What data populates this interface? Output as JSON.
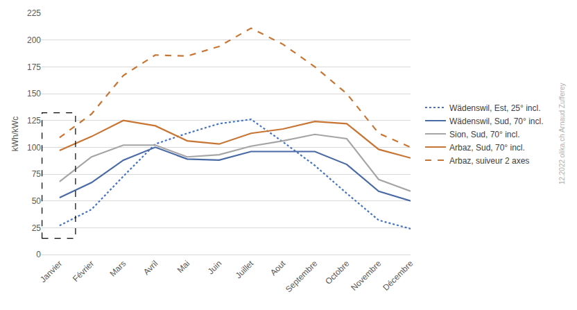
{
  "chart_data": {
    "type": "line",
    "y_label": "kWh/kWc",
    "categories": [
      "Janvier",
      "Février",
      "Mars",
      "Avril",
      "Mai",
      "Juin",
      "Juillet",
      "Aout",
      "Septembre",
      "Octobre",
      "Novembre",
      "Décembre"
    ],
    "series": [
      {
        "name": "Wädenswil, Est, 25° incl.",
        "color": "#4472c4",
        "line_style": "dot",
        "values": [
          27,
          42,
          73,
          103,
          113,
          122,
          126,
          105,
          83,
          57,
          32,
          24
        ]
      },
      {
        "name": "Wädenswil, Sud, 70° incl.",
        "color": "#4a6aa5",
        "line_style": "solid",
        "values": [
          53,
          67,
          88,
          100,
          89,
          88,
          96,
          96,
          96,
          84,
          59,
          50
        ]
      },
      {
        "name": "Sion, Sud, 70° incl.",
        "color": "#a5a5a5",
        "line_style": "solid",
        "values": [
          68,
          91,
          102,
          102,
          91,
          93,
          101,
          106,
          112,
          108,
          70,
          59
        ]
      },
      {
        "name": "Arbaz, Sud, 70° incl.",
        "color": "#c87533",
        "line_style": "solid",
        "values": [
          97,
          110,
          125,
          120,
          106,
          103,
          113,
          117,
          124,
          122,
          98,
          90
        ]
      },
      {
        "name": "Arbaz, suiveur 2 axes",
        "color": "#c87533",
        "line_style": "dash",
        "values": [
          109,
          131,
          167,
          186,
          185,
          194,
          211,
          196,
          175,
          150,
          113,
          100
        ]
      }
    ],
    "ylim": [
      0,
      225
    ],
    "yticks": [
      0,
      25,
      50,
      75,
      100,
      125,
      150,
      175,
      200,
      225
    ],
    "grid": true,
    "legend": "right",
    "annotations": [
      "12.2022 olika.ch Arnaud Zufferey"
    ]
  }
}
